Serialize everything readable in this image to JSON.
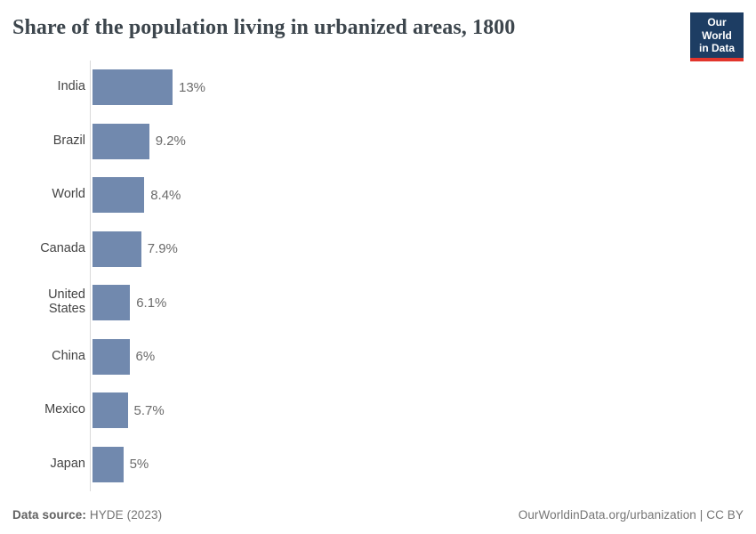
{
  "header": {
    "title": "Share of the population living in urbanized areas, 1800",
    "logo": {
      "line1": "Our World",
      "line2": "in Data",
      "bg_color": "#1d3d63",
      "accent_color": "#e2352c"
    }
  },
  "chart_data": {
    "type": "bar",
    "orientation": "horizontal",
    "title": "Share of the population living in urbanized areas, 1800",
    "categories": [
      "India",
      "Brazil",
      "World",
      "Canada",
      "United States",
      "China",
      "Mexico",
      "Japan"
    ],
    "values": [
      13,
      9.2,
      8.4,
      7.9,
      6.1,
      6,
      5.7,
      5
    ],
    "value_labels": [
      "13%",
      "9.2%",
      "8.4%",
      "7.9%",
      "6.1%",
      "6%",
      "5.7%",
      "5%"
    ],
    "unit": "%",
    "xlim": [
      0,
      13
    ],
    "bar_color": "#7189ae",
    "axis_line_color": "#dadada",
    "grid": false,
    "legend": false
  },
  "footer": {
    "source_label": "Data source:",
    "source_value": "HYDE (2023)",
    "link": "OurWorldinData.org/urbanization | CC BY"
  }
}
